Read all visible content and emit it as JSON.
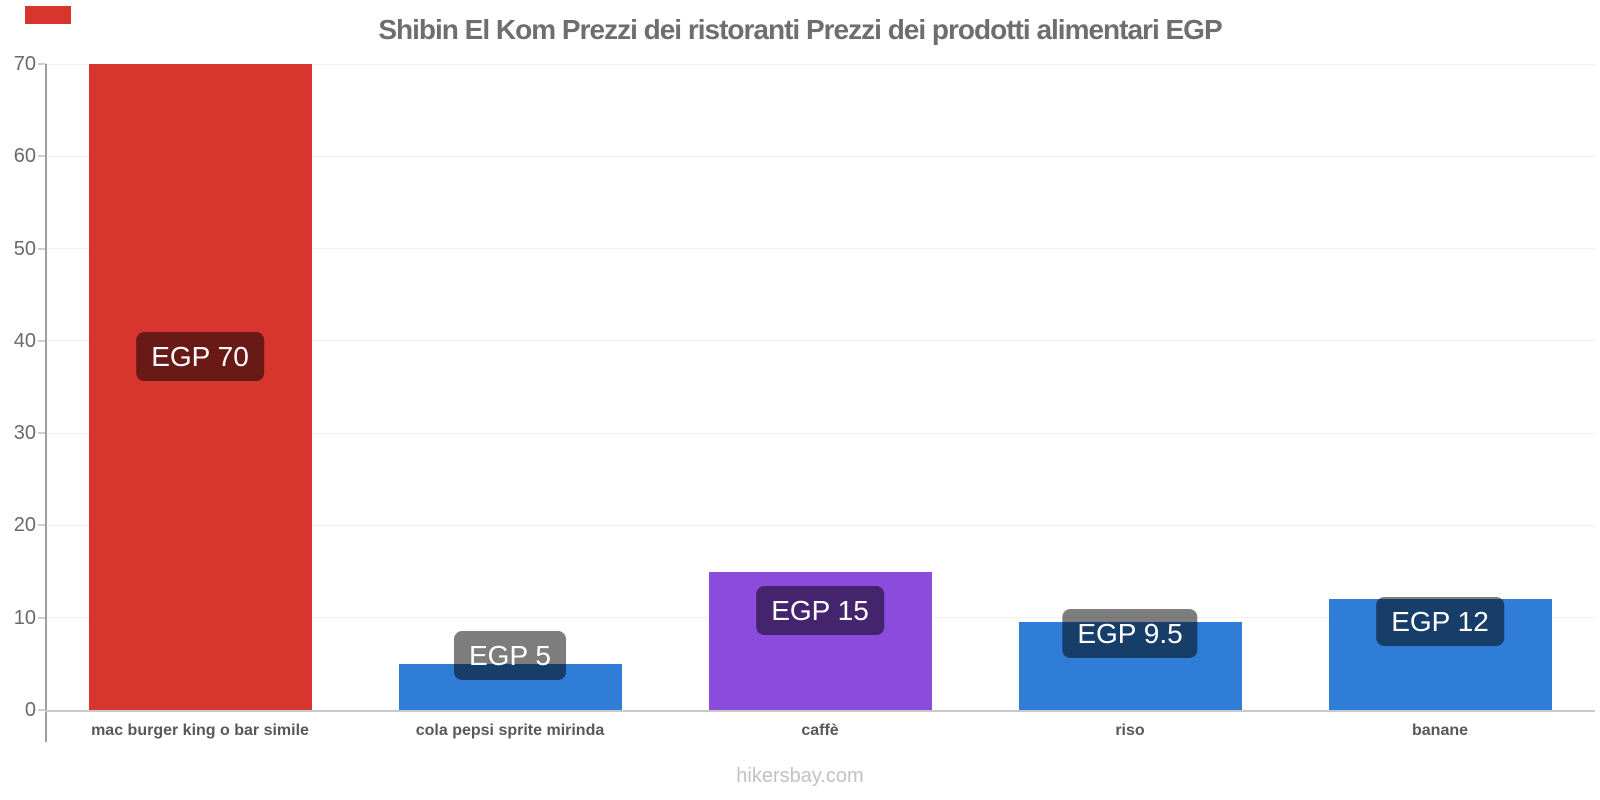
{
  "page": {
    "footer": "hikersbay.com"
  },
  "chart_data": {
    "type": "bar",
    "title": "Shibin El Kom Prezzi dei ristoranti Prezzi dei prodotti alimentari EGP",
    "categories": [
      "mac burger king o bar simile",
      "cola pepsi sprite mirinda",
      "caffè",
      "riso",
      "banane"
    ],
    "values": [
      70,
      5,
      15,
      9.5,
      12
    ],
    "value_labels": [
      "EGP 70",
      "EGP 5",
      "EGP 15",
      "EGP 9.5",
      "EGP 12"
    ],
    "bar_colors": [
      "#d6362e",
      "#2f7dd7",
      "#8b4bdd",
      "#2f7dd7",
      "#2f7dd7"
    ],
    "currency": "EGP",
    "xlabel": "",
    "ylabel": "",
    "ylim": [
      0,
      70
    ],
    "yticks": [
      0,
      10,
      20,
      30,
      40,
      50,
      60,
      70
    ],
    "grid": true,
    "legend": "none",
    "badge_style": {
      "bg": "rgba(0,0,0,0.51)",
      "text_color": "#ffffff"
    },
    "badge_top_offsets": [
      268,
      -33,
      14,
      -13,
      -2
    ]
  },
  "decor": {
    "corner_mark_color": "#d6362e"
  },
  "colors": {
    "title": "#6e6e6e",
    "axis_label": "#6a6a6a",
    "category_label": "#58585a",
    "grid_line": "#f1f1f1",
    "tick_mark": "#cfcfcf",
    "axis_line_y": "#9e9e9e",
    "axis_line_x": "#c9c9c9",
    "footer": "#c2c2c6"
  }
}
